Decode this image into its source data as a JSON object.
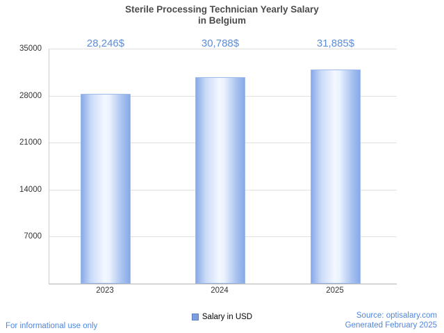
{
  "title": {
    "line1": "Sterile Processing Technician Yearly Salary",
    "line2": "in Belgium"
  },
  "chart_data": {
    "type": "bar",
    "title": "Sterile Processing Technician Yearly Salary in Belgium",
    "categories": [
      "2023",
      "2024",
      "2025"
    ],
    "values": [
      28246,
      30788,
      31885
    ],
    "value_labels": [
      "28,246$",
      "30,788$",
      "31,885$"
    ],
    "ytick_labels": [
      "35000",
      "28000",
      "21000",
      "14000",
      "7000"
    ],
    "ylim": [
      0,
      35000
    ],
    "xlabel": "",
    "ylabel": "",
    "grid": "horizontal",
    "legend_position": "bottom",
    "legend_entries": [
      "Salary in USD"
    ],
    "bar_edge_color": "#88a9e8",
    "bar_center_color": "#f3f8ff",
    "value_label_color": "#5b8dd9"
  },
  "legend": {
    "label": "Salary in USD"
  },
  "footer": {
    "left": "For informational use only",
    "source": "Source: optisalary.com",
    "generated": "Generated February 2025"
  }
}
